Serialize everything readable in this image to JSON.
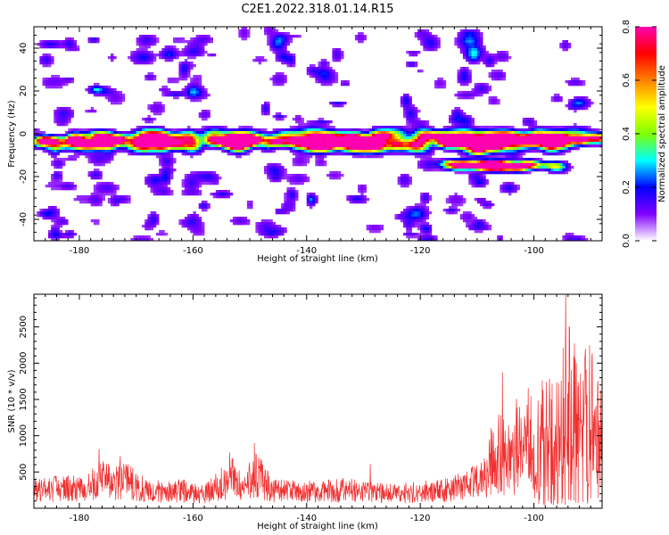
{
  "figure_title": "C2E1.2022.318.01.14.R15",
  "chart_data": [
    {
      "type": "heatmap",
      "title": "C2E1.2022.318.01.14.R15",
      "xlabel": "Height of straight line (km)",
      "ylabel": "Frequency (Hz)",
      "xlim": [
        -188,
        -88
      ],
      "ylim": [
        -50,
        50
      ],
      "xticks": [
        -180,
        -160,
        -140,
        -120,
        -100
      ],
      "yticks": [
        -40,
        -20,
        0,
        20,
        40
      ],
      "xtick_labels": [
        "-180",
        "-160",
        "-140",
        "-120",
        "-100"
      ],
      "ytick_labels": [
        "-40",
        "-20",
        "0",
        "20",
        "40"
      ],
      "colorbar": {
        "label": "Normalized spectral amplitude",
        "range": [
          0,
          0.8
        ],
        "ticks": [
          0.0,
          0.2,
          0.4,
          0.6,
          0.8
        ],
        "tick_labels": [
          "0.0",
          "0.2",
          "0.4",
          "0.6",
          "0.8"
        ],
        "colormap": "rainbow",
        "colors": [
          "#ffffff",
          "#8000ff",
          "#0000ff",
          "#00ffff",
          "#80ff00",
          "#ffff00",
          "#ff8000",
          "#ff0000",
          "#ff00b0"
        ]
      },
      "main_band": {
        "frequency_hz": -3,
        "width_hz": 4
      },
      "secondary_band": {
        "frequency_hz": -15,
        "x_range": [
          -115,
          -95
        ]
      },
      "peaks": [
        {
          "x": -186,
          "y": -3,
          "value": 0.7
        },
        {
          "x": -181,
          "y": -3,
          "value": 0.8
        },
        {
          "x": -176,
          "y": -2,
          "value": 0.55
        },
        {
          "x": -173,
          "y": -3,
          "value": 0.5
        },
        {
          "x": -150,
          "y": -4,
          "value": 0.75
        },
        {
          "x": -129,
          "y": -4,
          "value": 0.8
        },
        {
          "x": -110,
          "y": -8,
          "value": 0.5
        },
        {
          "x": -101,
          "y": -14,
          "value": 0.45
        },
        {
          "x": -92,
          "y": -3,
          "value": 0.8
        }
      ]
    },
    {
      "type": "line",
      "xlabel": "Height of straight line (km)",
      "ylabel": "SNR (10 * v/v)",
      "xlim": [
        -188,
        -88
      ],
      "ylim": [
        0,
        2950
      ],
      "xticks": [
        -180,
        -160,
        -140,
        -120,
        -100
      ],
      "yticks": [
        500,
        1000,
        1500,
        2000,
        2500
      ],
      "xtick_labels": [
        "-180",
        "-160",
        "-140",
        "-120",
        "-100"
      ],
      "ytick_labels": [
        "500",
        "1000",
        "1500",
        "2000",
        "2500"
      ],
      "color": "#f03030",
      "envelope": [
        {
          "x": -188,
          "y": 300
        },
        {
          "x": -182,
          "y": 350
        },
        {
          "x": -179,
          "y": 300
        },
        {
          "x": -176,
          "y": 550
        },
        {
          "x": -174,
          "y": 400
        },
        {
          "x": -172,
          "y": 520
        },
        {
          "x": -168,
          "y": 280
        },
        {
          "x": -162,
          "y": 300
        },
        {
          "x": -158,
          "y": 260
        },
        {
          "x": -153,
          "y": 520
        },
        {
          "x": -151,
          "y": 350
        },
        {
          "x": -149,
          "y": 600
        },
        {
          "x": -146,
          "y": 300
        },
        {
          "x": -140,
          "y": 280
        },
        {
          "x": -134,
          "y": 320
        },
        {
          "x": -128,
          "y": 260
        },
        {
          "x": -122,
          "y": 280
        },
        {
          "x": -116,
          "y": 300
        },
        {
          "x": -112,
          "y": 380
        },
        {
          "x": -108,
          "y": 550
        },
        {
          "x": -105,
          "y": 750
        },
        {
          "x": -102,
          "y": 700
        },
        {
          "x": -99,
          "y": 800
        },
        {
          "x": -96,
          "y": 900
        },
        {
          "x": -94,
          "y": 1300
        },
        {
          "x": -92,
          "y": 1000
        },
        {
          "x": -90,
          "y": 1100
        },
        {
          "x": -88,
          "y": 900
        }
      ],
      "spikes": [
        {
          "x": -153.5,
          "y": 770
        },
        {
          "x": -149.2,
          "y": 900
        },
        {
          "x": -176.5,
          "y": 820
        },
        {
          "x": -172.8,
          "y": 720
        },
        {
          "x": -128.8,
          "y": 610
        },
        {
          "x": -105.5,
          "y": 1870
        },
        {
          "x": -101.0,
          "y": 1660
        },
        {
          "x": -98.5,
          "y": 1760
        },
        {
          "x": -95.2,
          "y": 1760
        },
        {
          "x": -94.4,
          "y": 2950
        },
        {
          "x": -93.8,
          "y": 2500
        },
        {
          "x": -92.5,
          "y": 2000
        },
        {
          "x": -91.0,
          "y": 2100
        },
        {
          "x": -90.2,
          "y": 2250
        },
        {
          "x": -88.8,
          "y": 1700
        }
      ]
    }
  ]
}
